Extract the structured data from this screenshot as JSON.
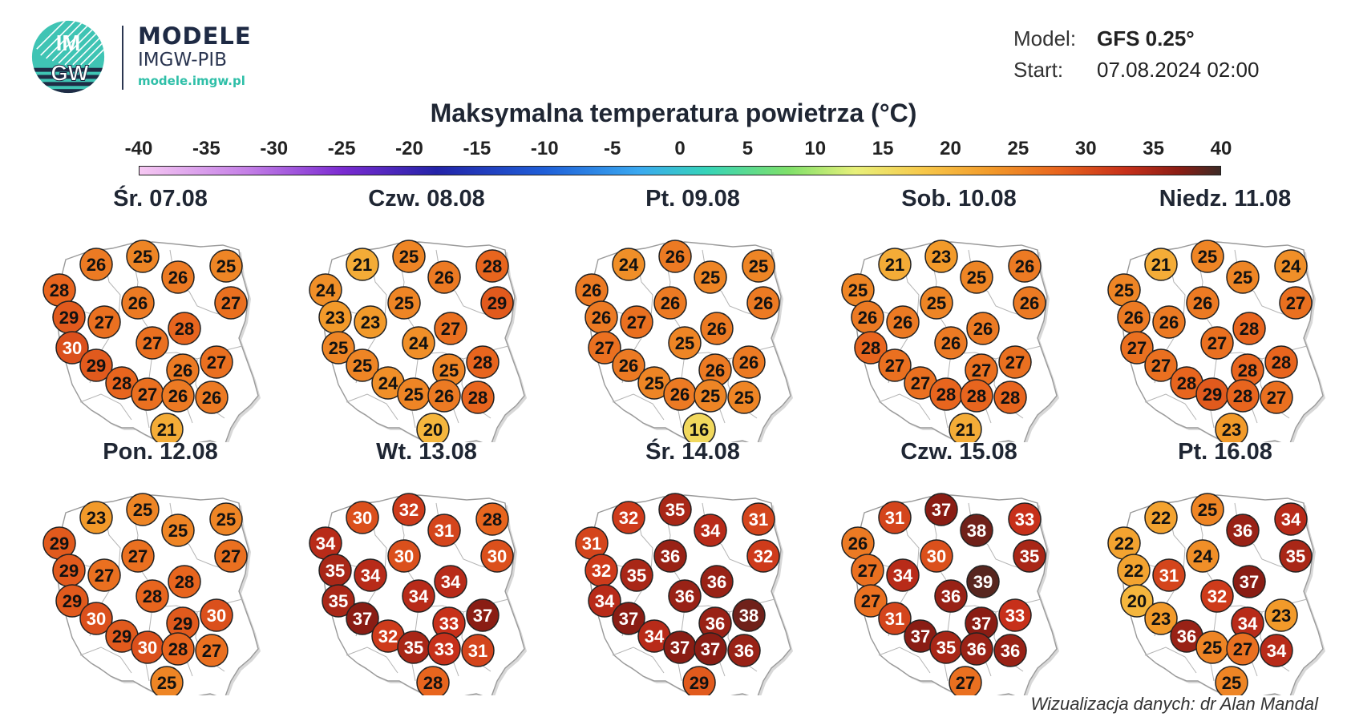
{
  "header": {
    "logo_text_top": "IM",
    "logo_text_bottom": "GW",
    "brand_title": "MODELE",
    "brand_subtitle": "IMGW-PIB",
    "brand_url": "modele.imgw.pl",
    "model_label": "Model:",
    "model_value": "GFS 0.25°",
    "start_label": "Start:",
    "start_value": "07.08.2024 02:00"
  },
  "title": "Maksymalna temperatura powietrza (°C)",
  "colorbar": {
    "ticks": [
      "-40",
      "-35",
      "-30",
      "-25",
      "-20",
      "-15",
      "-10",
      "-5",
      "0",
      "5",
      "10",
      "15",
      "20",
      "25",
      "30",
      "35",
      "40"
    ],
    "min": -40,
    "max": 40,
    "stops": [
      {
        "t": -40,
        "color": "#f6c8f2"
      },
      {
        "t": -32,
        "color": "#c47fe6"
      },
      {
        "t": -25,
        "color": "#7b2bd1"
      },
      {
        "t": -18,
        "color": "#2323a8"
      },
      {
        "t": -10,
        "color": "#1f5fd8"
      },
      {
        "t": -3,
        "color": "#3aa9f0"
      },
      {
        "t": 2,
        "color": "#36d4b8"
      },
      {
        "t": 8,
        "color": "#7ee06a"
      },
      {
        "t": 13,
        "color": "#e8f07a"
      },
      {
        "t": 18,
        "color": "#f7c84a"
      },
      {
        "t": 23,
        "color": "#f29a2a"
      },
      {
        "t": 28,
        "color": "#e8651e"
      },
      {
        "t": 33,
        "color": "#c7301a"
      },
      {
        "t": 37,
        "color": "#8a1d14"
      },
      {
        "t": 40,
        "color": "#3d2a25"
      }
    ]
  },
  "days": [
    {
      "label": "Śr. 07.08",
      "values": [
        28,
        26,
        25,
        26,
        25,
        27,
        29,
        27,
        26,
        28,
        30,
        27,
        29,
        26,
        27,
        28,
        27,
        26,
        26,
        21
      ]
    },
    {
      "label": "Czw. 08.08",
      "values": [
        24,
        21,
        25,
        26,
        28,
        29,
        23,
        23,
        25,
        27,
        25,
        24,
        25,
        25,
        28,
        24,
        25,
        26,
        28,
        20
      ]
    },
    {
      "label": "Pt. 09.08",
      "values": [
        26,
        24,
        26,
        25,
        25,
        26,
        26,
        27,
        26,
        26,
        27,
        25,
        26,
        26,
        26,
        25,
        26,
        25,
        25,
        16
      ]
    },
    {
      "label": "Sob. 10.08",
      "values": [
        25,
        21,
        23,
        25,
        26,
        26,
        26,
        26,
        25,
        26,
        28,
        26,
        27,
        27,
        27,
        27,
        28,
        28,
        28,
        21
      ]
    },
    {
      "label": "Niedz. 11.08",
      "values": [
        25,
        21,
        25,
        25,
        24,
        27,
        26,
        26,
        26,
        28,
        27,
        27,
        27,
        28,
        28,
        28,
        29,
        28,
        27,
        23
      ]
    },
    {
      "label": "Pon. 12.08",
      "values": [
        29,
        23,
        25,
        25,
        25,
        27,
        29,
        27,
        27,
        28,
        29,
        28,
        30,
        29,
        30,
        29,
        30,
        28,
        27,
        25
      ]
    },
    {
      "label": "Wt. 13.08",
      "values": [
        34,
        30,
        32,
        31,
        28,
        30,
        35,
        34,
        30,
        34,
        35,
        34,
        37,
        33,
        37,
        32,
        35,
        33,
        31,
        28
      ]
    },
    {
      "label": "Śr. 14.08",
      "values": [
        31,
        32,
        35,
        34,
        31,
        32,
        32,
        35,
        36,
        36,
        34,
        36,
        37,
        36,
        38,
        34,
        37,
        37,
        36,
        29
      ]
    },
    {
      "label": "Czw. 15.08",
      "values": [
        26,
        31,
        37,
        38,
        33,
        35,
        27,
        34,
        30,
        39,
        27,
        36,
        31,
        37,
        33,
        37,
        35,
        36,
        36,
        27
      ]
    },
    {
      "label": "Pt. 16.08",
      "values": [
        22,
        22,
        25,
        36,
        34,
        35,
        22,
        31,
        24,
        37,
        20,
        32,
        23,
        34,
        23,
        36,
        25,
        27,
        34,
        25
      ]
    }
  ],
  "credit": "Wizualizacja danych: dr Alan Mandal"
}
